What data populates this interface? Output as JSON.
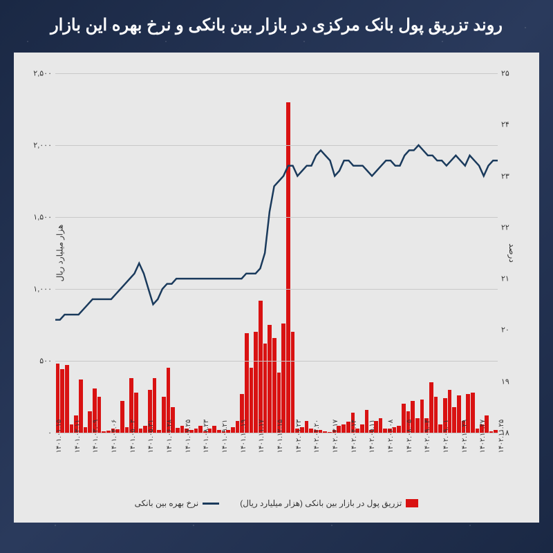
{
  "title": "روند تزریق پول بانک مرکزی در بازار بین بانکی و نرخ بهره این بازار",
  "chart": {
    "type": "combo-bar-line",
    "background_color": "#e8e8e8",
    "grid_color": "#c8c8c8",
    "left_axis": {
      "title": "هزار میلیارد ریال",
      "min": 0,
      "max": 2500,
      "step": 500,
      "ticks": [
        "۰",
        "۵۰۰",
        "۱,۰۰۰",
        "۱,۵۰۰",
        "۲,۰۰۰",
        "۲,۵۰۰"
      ]
    },
    "right_axis": {
      "title": "درصد",
      "min": 18,
      "max": 25,
      "step": 1,
      "ticks": [
        "۱۸",
        "۱۹",
        "۲۰",
        "۲۱",
        "۲۲",
        "۲۳",
        "۲۴",
        "۲۵"
      ]
    },
    "x_categories": [
      "۱۴۰۱.۰۱.۱۵",
      "۱۴۰۱.۰۳.۱۱",
      "۱۴۰۱.۰۳.۰۹",
      "۱۴۰۱.۰۴.۰۶",
      "۱۴۰۱.۰۵.۰۳",
      "۱۴۰۱.۰۵.۳۱",
      "۱۴۰۱.۰۶.۲۸",
      "۱۴۰۱.۰۷.۲۵",
      "۱۴۰۱.۰۸.۲۳",
      "۱۴۰۱.۰۹.۲۱",
      "۱۴۰۱.۱۰.۱۹",
      "۱۴۰۱.۱۱.۱۷",
      "۱۴۰۱.۱۲.۱۵",
      "۱۴۰۲.۰۱.۲۳",
      "۱۴۰۲.۰۲.۲۰",
      "۱۴۰۲.۰۳.۱۷",
      "۱۴۰۲.۰۴.۱۴",
      "۱۴۰۲.۰۵.۱۱",
      "۱۴۰۲.۰۶.۰۸",
      "۱۴۰۲.۰۸.۰۵",
      "۱۴۰۲.۰۹.۰۳",
      "۱۴۰۲.۰۹.۰۱",
      "۱۴۰۲.۱۰.۲۹",
      "۱۴۰۲.۱۰.۲۷",
      "۱۴۰۲.۱۱.۲۵"
    ],
    "bar_series": {
      "label": "تزریق پول در بازار بین بانکی (هزار میلیارد ریال)",
      "color": "#d91212",
      "values": [
        20,
        10,
        120,
        60,
        30,
        280,
        270,
        80,
        260,
        180,
        300,
        240,
        60,
        250,
        350,
        100,
        230,
        100,
        220,
        150,
        200,
        50,
        40,
        30,
        30,
        100,
        80,
        20,
        160,
        60,
        30,
        140,
        75,
        60,
        50,
        20,
        5,
        10,
        20,
        20,
        30,
        80,
        40,
        30,
        700,
        2300,
        760,
        420,
        660,
        750,
        620,
        920,
        700,
        450,
        690,
        270,
        80,
        40,
        20,
        10,
        20,
        50,
        30,
        10,
        50,
        30,
        20,
        30,
        50,
        35,
        180,
        450,
        250,
        20,
        380,
        300,
        50,
        30,
        280,
        380,
        40,
        220,
        25,
        30,
        15,
        10,
        250,
        310,
        150,
        40,
        370,
        120,
        60,
        470,
        440,
        480
      ]
    },
    "line_series": {
      "label": "نرخ بهره بین بانکی",
      "color": "#1a3a5c",
      "width": 2.5,
      "values": [
        20.2,
        20.2,
        20.3,
        20.3,
        20.3,
        20.3,
        20.4,
        20.5,
        20.6,
        20.6,
        20.6,
        20.6,
        20.6,
        20.7,
        20.8,
        20.9,
        21.0,
        21.1,
        21.3,
        21.1,
        20.8,
        20.5,
        20.6,
        20.8,
        20.9,
        20.9,
        21.0,
        21.0,
        21.0,
        21.0,
        21.0,
        21.0,
        21.0,
        21.0,
        21.0,
        21.0,
        21.0,
        21.0,
        21.0,
        21.0,
        21.0,
        21.1,
        21.1,
        21.1,
        21.2,
        21.5,
        22.3,
        22.8,
        22.9,
        23.0,
        23.2,
        23.2,
        23.0,
        23.1,
        23.2,
        23.2,
        23.4,
        23.5,
        23.4,
        23.3,
        23.0,
        23.1,
        23.3,
        23.3,
        23.2,
        23.2,
        23.2,
        23.1,
        23.0,
        23.1,
        23.2,
        23.3,
        23.3,
        23.2,
        23.2,
        23.4,
        23.5,
        23.5,
        23.6,
        23.5,
        23.4,
        23.4,
        23.3,
        23.3,
        23.2,
        23.3,
        23.4,
        23.3,
        23.2,
        23.4,
        23.3,
        23.2,
        23.0,
        23.2,
        23.3,
        23.3
      ]
    },
    "legend": {
      "items": [
        {
          "type": "bar",
          "color": "#d91212",
          "label": "تزریق پول در بازار بین بانکی (هزار میلیارد ریال)"
        },
        {
          "type": "line",
          "color": "#1a3a5c",
          "label": "نرخ بهره بین بانکی"
        }
      ]
    }
  }
}
